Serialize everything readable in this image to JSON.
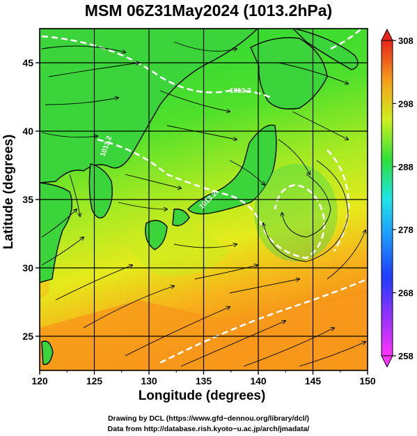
{
  "title": "MSM 06Z31May2024 (1013.2hPa)",
  "x_axis": {
    "label": "Longitude (degrees)",
    "ticks": [
      "120",
      "125",
      "130",
      "135",
      "140",
      "145",
      "150"
    ]
  },
  "y_axis": {
    "label": "Latitude  (degrees)",
    "ticks": [
      "25",
      "30",
      "35",
      "40",
      "45"
    ]
  },
  "colorbar": {
    "ticks": [
      "308",
      "298",
      "288",
      "278",
      "268",
      "258"
    ],
    "min": 258,
    "max": 308
  },
  "contour_labels": [
    "1013.2",
    "1013.2",
    "1013.2"
  ],
  "credits": {
    "line1": "Drawing by DCL (https://www.gfd−dennou.org/library/dcl/)",
    "line2": "Data from http://database.rish.kyoto−u.ac.jp/arch/jmadata/"
  },
  "map": {
    "extent": {
      "lon": [
        120,
        150
      ],
      "lat": [
        22.5,
        47.5
      ]
    },
    "field": "temperature (K) with wind streamlines",
    "contour_color": "#ffffff",
    "colors": {
      "cold": "#ff44ff",
      "cool_blue": "#1f3cff",
      "cyan": "#22e6e6",
      "green": "#2fdc3a",
      "yellow": "#d9ef1e",
      "orange": "#f7931b",
      "red": "#e8271b"
    }
  }
}
